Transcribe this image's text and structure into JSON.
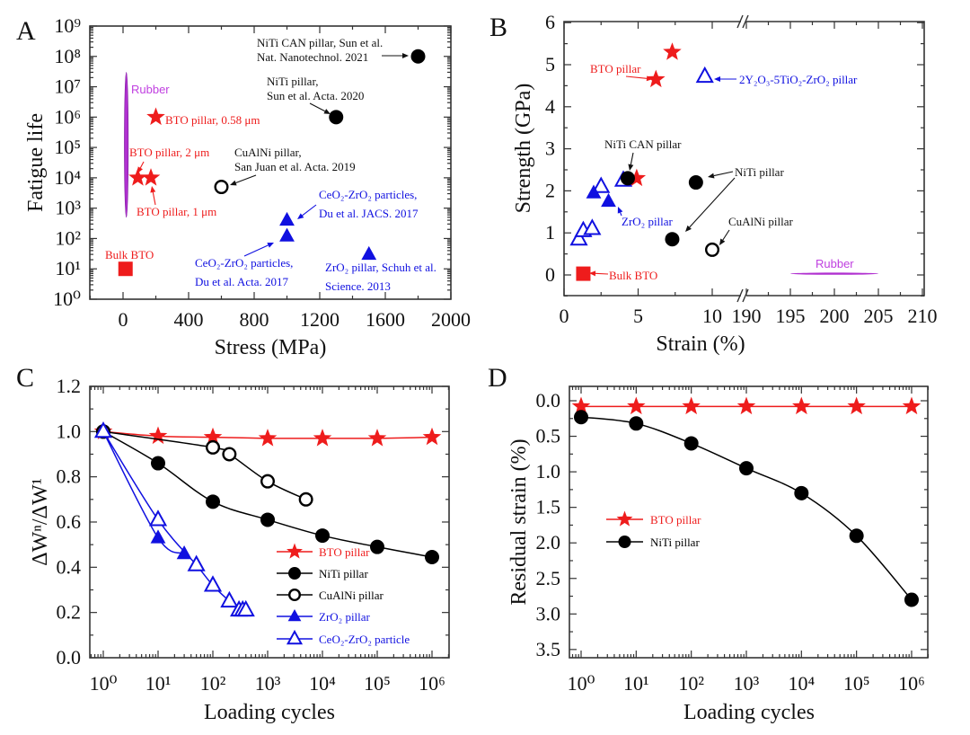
{
  "chart_data": [
    {
      "panel_label": "A",
      "type": "scatter",
      "xlabel": "Stress (MPa)",
      "ylabel": "Fatigue life",
      "xscale": "linear",
      "yscale": "log",
      "xlim": [
        -200,
        2000
      ],
      "ylim": [
        1,
        1000000000
      ],
      "xticks": [
        0,
        400,
        800,
        1200,
        1600,
        2000
      ],
      "xtick_labels": [
        "0",
        "400",
        "800",
        "1200",
        "1600",
        "2000"
      ],
      "yticks": [
        1,
        10,
        100,
        1000,
        10000,
        100000,
        1000000,
        10000000,
        100000000,
        1000000000
      ],
      "ytick_labels": [
        "10⁰",
        "10¹",
        "10²",
        "10³",
        "10⁴",
        "10⁵",
        "10⁶",
        "10⁷",
        "10⁸",
        "10⁹"
      ],
      "series": [
        {
          "name": "BTO pillar, 0.58 μm",
          "marker": "star",
          "color": "#ee1c1c",
          "points": [
            [
              200,
              1000000
            ]
          ]
        },
        {
          "name": "BTO pillar, 2 μm",
          "marker": "star",
          "color": "#ee1c1c",
          "points": [
            [
              90,
              10000
            ]
          ]
        },
        {
          "name": "BTO pillar, 1 μm",
          "marker": "star",
          "color": "#ee1c1c",
          "points": [
            [
              170,
              10000
            ]
          ]
        },
        {
          "name": "Bulk BTO",
          "marker": "square",
          "color": "#ee1c1c",
          "points": [
            [
              15,
              10
            ]
          ]
        },
        {
          "name": "CuAlNi pillar",
          "marker": "ocircle",
          "color": "#000000",
          "points": [
            [
              600,
              5000
            ]
          ]
        },
        {
          "name": "NiTi pillar",
          "marker": "circle",
          "color": "#000000",
          "points": [
            [
              1300,
              1000000
            ]
          ]
        },
        {
          "name": "NiTi CAN pillar",
          "marker": "circle",
          "color": "#000000",
          "points": [
            [
              1800,
              100000000
            ]
          ]
        },
        {
          "name": "CeO2-ZrO2 particles JACS",
          "marker": "tri",
          "color": "#1010e0",
          "points": [
            [
              1000,
              400
            ]
          ]
        },
        {
          "name": "CeO2-ZrO2 particles Acta",
          "marker": "tri",
          "color": "#1010e0",
          "points": [
            [
              1000,
              120
            ]
          ]
        },
        {
          "name": "ZrO2 pillar",
          "marker": "tri",
          "color": "#1010e0",
          "points": [
            [
              1500,
              30
            ]
          ]
        }
      ],
      "rubber": {
        "x": 20,
        "y_range": [
          500,
          30000000
        ],
        "color": "#b030d0"
      },
      "annotations": [
        "NiTi CAN pillar, Sun et al.",
        "Nat. Nanotechnol. 2021",
        "NiTi pillar,",
        "Sun et al. Acta. 2020",
        "Rubber",
        "BTO pillar, 0.58 μm",
        "BTO pillar, 2 μm",
        "BTO pillar, 1 μm",
        "CuAlNi pillar,",
        "San Juan et al. Acta. 2019",
        "CeO₂-ZrO₂ particles,",
        "Du et al. JACS. 2017",
        "CeO₂-ZrO₂ particles,",
        "Du et al. Acta. 2017",
        "ZrO₂ pillar, Schuh et al.",
        "Science. 2013",
        "Bulk BTO"
      ]
    },
    {
      "panel_label": "B",
      "type": "scatter",
      "xlabel": "Strain (%)",
      "ylabel": "Strength (GPa)",
      "xscale": "broken-linear",
      "x_break": [
        12,
        190
      ],
      "xlim": [
        0,
        210
      ],
      "ylim": [
        -0.5,
        6
      ],
      "xticks": [
        0,
        5,
        10,
        190,
        195,
        200,
        205,
        210
      ],
      "xtick_labels": [
        "0",
        "5",
        "10",
        "190",
        "195",
        "200",
        "205",
        "210"
      ],
      "yticks": [
        0,
        1,
        2,
        3,
        4,
        5,
        6
      ],
      "ytick_labels": [
        "0",
        "1",
        "2",
        "3",
        "4",
        "5",
        "6"
      ],
      "series": [
        {
          "name": "BTO pillar",
          "marker": "star",
          "color": "#ee1c1c",
          "points": [
            [
              7.3,
              5.3
            ],
            [
              6.2,
              4.65
            ],
            [
              4.9,
              2.3
            ]
          ]
        },
        {
          "name": "Bulk BTO",
          "marker": "square",
          "color": "#ee1c1c",
          "points": [
            [
              1.3,
              0.03
            ]
          ]
        },
        {
          "name": "2Y2O3-5TiO2-ZrO2 pillar",
          "marker": "otri",
          "color": "#1010e0",
          "points": [
            [
              9.5,
              4.72
            ]
          ]
        },
        {
          "name": "CeO2-ZrO2 pillars",
          "marker": "otri",
          "color": "#1010e0",
          "points": [
            [
              1.0,
              0.85
            ],
            [
              1.3,
              1.05
            ],
            [
              1.9,
              1.1
            ],
            [
              2.5,
              2.1
            ],
            [
              4.0,
              2.25
            ]
          ]
        },
        {
          "name": "ZrO2 pillar",
          "marker": "tri",
          "color": "#1010e0",
          "points": [
            [
              2.0,
              1.95
            ],
            [
              3.0,
              1.75
            ]
          ]
        },
        {
          "name": "NiTi CAN pillar",
          "marker": "circle",
          "color": "#000000",
          "points": [
            [
              4.3,
              2.3
            ]
          ]
        },
        {
          "name": "NiTi pillar",
          "marker": "circle",
          "color": "#000000",
          "points": [
            [
              8.9,
              2.2
            ],
            [
              7.3,
              0.85
            ]
          ]
        },
        {
          "name": "CuAlNi pillar",
          "marker": "ocircle",
          "color": "#000000",
          "points": [
            [
              10.0,
              0.6
            ]
          ]
        }
      ],
      "rubber": {
        "x_range": [
          195,
          205
        ],
        "y": 0.03,
        "color": "#b030d0"
      },
      "annotations": [
        "BTO pillar",
        "2Y₂O₃-5TiO₂-ZrO₂ pillar",
        "NiTi CAN pillar",
        "NiTi pillar",
        "ZrO₂ pillar",
        "CuAlNi pillar",
        "Rubber",
        "Bulk BTO"
      ]
    },
    {
      "panel_label": "C",
      "type": "line",
      "xlabel": "Loading cycles",
      "ylabel": "ΔWⁿ/ΔW¹",
      "xscale": "log",
      "xlim": [
        0.55,
        2000000
      ],
      "ylim": [
        0,
        1.2
      ],
      "xticks": [
        1,
        10,
        100,
        1000,
        10000,
        100000,
        1000000
      ],
      "xtick_labels": [
        "10⁰",
        "10¹",
        "10²",
        "10³",
        "10⁴",
        "10⁵",
        "10⁶"
      ],
      "yticks": [
        0,
        0.2,
        0.4,
        0.6,
        0.8,
        1.0,
        1.2
      ],
      "ytick_labels": [
        "0.0",
        "0.2",
        "0.4",
        "0.6",
        "0.8",
        "1.0",
        "1.2"
      ],
      "legend": "center-right",
      "series": [
        {
          "name": "BTO pillar",
          "marker": "star",
          "color": "#ee1c1c",
          "x": [
            1,
            10,
            100,
            1000,
            10000,
            100000,
            1000000
          ],
          "y": [
            1.0,
            0.98,
            0.975,
            0.97,
            0.97,
            0.97,
            0.975
          ]
        },
        {
          "name": "NiTi pillar",
          "marker": "circle",
          "color": "#000000",
          "x": [
            1,
            10,
            100,
            1000,
            10000,
            100000,
            1000000
          ],
          "y": [
            1.0,
            0.86,
            0.69,
            0.61,
            0.54,
            0.49,
            0.445
          ]
        },
        {
          "name": "CuAlNi pillar",
          "marker": "ocircle",
          "color": "#000000",
          "x": [
            1,
            100,
            200,
            1000,
            5000
          ],
          "y": [
            1.0,
            0.93,
            0.9,
            0.78,
            0.7
          ]
        },
        {
          "name": "ZrO₂ pillar",
          "marker": "tri",
          "color": "#1010e0",
          "x": [
            1,
            10,
            30
          ],
          "y": [
            1.0,
            0.53,
            0.46
          ]
        },
        {
          "name": "CeO₂-ZrO₂ particle",
          "marker": "otri",
          "color": "#1010e0",
          "x": [
            1,
            10,
            50,
            100,
            200,
            300,
            350,
            400
          ],
          "y": [
            1.0,
            0.61,
            0.41,
            0.32,
            0.25,
            0.21,
            0.21,
            0.21
          ]
        }
      ]
    },
    {
      "panel_label": "D",
      "type": "line",
      "xlabel": "Loading cycles",
      "ylabel": "Residual strain (%)",
      "xscale": "log",
      "yaxis_inverted": true,
      "xlim": [
        0.6,
        2000000
      ],
      "ylim": [
        -0.2,
        3.6
      ],
      "xticks": [
        1,
        10,
        100,
        1000,
        10000,
        100000,
        1000000
      ],
      "xtick_labels": [
        "10⁰",
        "10¹",
        "10²",
        "10³",
        "10⁴",
        "10⁵",
        "10⁶"
      ],
      "yticks": [
        0,
        0.5,
        1.0,
        1.5,
        2.0,
        2.5,
        3.0,
        3.5
      ],
      "ytick_labels": [
        "0.0",
        "0.5",
        "1.0",
        "1.5",
        "2.0",
        "2.5",
        "3.0",
        "3.5"
      ],
      "legend": "center-left",
      "series": [
        {
          "name": "BTO pillar",
          "marker": "star",
          "color": "#ee1c1c",
          "x": [
            1,
            10,
            100,
            1000,
            10000,
            100000,
            1000000
          ],
          "y": [
            0.08,
            0.08,
            0.08,
            0.08,
            0.08,
            0.08,
            0.08
          ]
        },
        {
          "name": "NiTi pillar",
          "marker": "circle",
          "color": "#000000",
          "x": [
            1,
            10,
            100,
            1000,
            10000,
            100000,
            1000000
          ],
          "y": [
            0.23,
            0.32,
            0.6,
            0.95,
            1.3,
            1.9,
            2.8
          ]
        }
      ]
    }
  ]
}
